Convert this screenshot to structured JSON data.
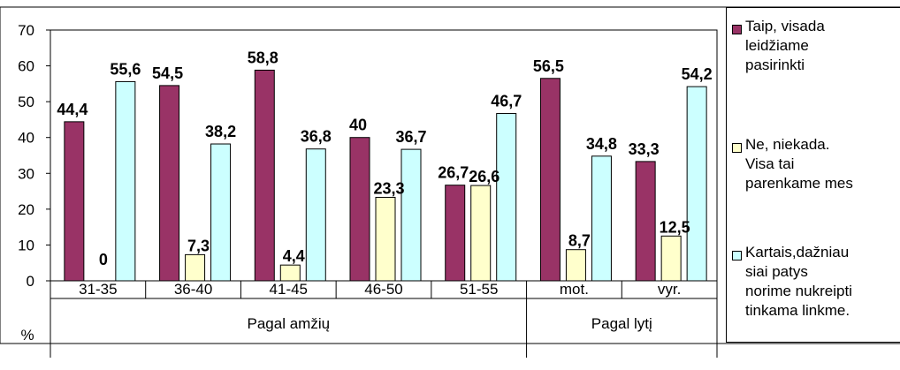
{
  "chart_data": {
    "type": "bar",
    "ylabel": "%",
    "ylim": [
      0,
      70
    ],
    "yticks": [
      "0",
      "10",
      "20",
      "30",
      "40",
      "50",
      "60",
      "70"
    ],
    "categories": [
      "31-35",
      "36-40",
      "41-45",
      "46-50",
      "51-55",
      "mot.",
      "vyr."
    ],
    "groups": [
      {
        "label": "Pagal amžių",
        "count": 5
      },
      {
        "label": "Pagal lytį",
        "count": 2
      }
    ],
    "series": [
      {
        "name": "Taip, visada\nleidžiame\npasirinkti",
        "color": "#993366",
        "values": [
          44.4,
          54.5,
          58.8,
          40,
          26.7,
          56.5,
          33.3
        ],
        "labels": [
          "44,4",
          "54,5",
          "58,8",
          "40",
          "26,7",
          "56,5",
          "33,3"
        ]
      },
      {
        "name": "Ne, niekada.\nVisa tai\nparenkame mes",
        "color": "#FFFFCC",
        "values": [
          0,
          7.3,
          4.4,
          23.3,
          26.6,
          8.7,
          12.5
        ],
        "labels": [
          "0",
          "7,3",
          "4,4",
          "23,3",
          "26,6",
          "8,7",
          "12,5"
        ]
      },
      {
        "name": "Kartais,dažniau\nsiai patys\nnorime nukreipti\ntinkama linkme.",
        "color": "#CCFFFF",
        "values": [
          55.6,
          38.2,
          36.8,
          36.7,
          46.7,
          34.8,
          54.2
        ],
        "labels": [
          "55,6",
          "38,2",
          "36,8",
          "36,7",
          "46,7",
          "34,8",
          "54,2"
        ]
      }
    ],
    "grid": false,
    "legend_position": "right"
  }
}
